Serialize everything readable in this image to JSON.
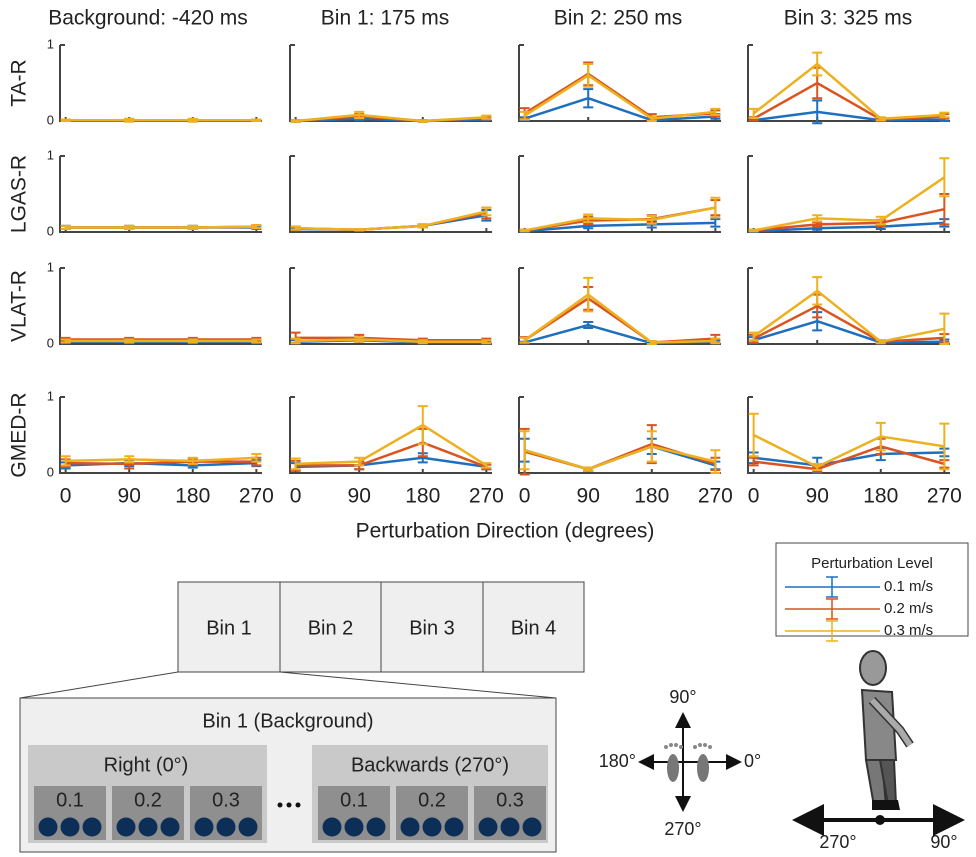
{
  "chart_data": [
    {
      "type": "line",
      "title": "Background: -420 ms",
      "ylabel": "TA-R",
      "x": [
        0,
        90,
        180,
        270
      ],
      "xlim": [
        -8,
        278
      ],
      "ylim": [
        0,
        1
      ],
      "yticks": [
        0,
        1
      ],
      "series": [
        {
          "values": [
            0.01,
            0.01,
            0.01,
            0.01
          ],
          "errors": [
            0.01,
            0.01,
            0.01,
            0.01
          ]
        },
        {
          "values": [
            0.01,
            0.01,
            0.01,
            0.01
          ],
          "errors": [
            0.01,
            0.01,
            0.01,
            0.01
          ]
        },
        {
          "values": [
            0.01,
            0.01,
            0.01,
            0.01
          ],
          "errors": [
            0.01,
            0.02,
            0.02,
            0.01
          ]
        }
      ]
    },
    {
      "type": "line",
      "title": "Bin 1: 175 ms",
      "x": [
        0,
        90,
        180,
        270
      ],
      "xlim": [
        -8,
        278
      ],
      "ylim": [
        0,
        1
      ],
      "series": [
        {
          "values": [
            0,
            0.03,
            0,
            0.02
          ],
          "errors": [
            0.01,
            0.02,
            0.01,
            0.01
          ]
        },
        {
          "values": [
            0,
            0.06,
            0,
            0.04
          ],
          "errors": [
            0.01,
            0.03,
            0.01,
            0.02
          ]
        },
        {
          "values": [
            0,
            0.08,
            0,
            0.05
          ],
          "errors": [
            0.01,
            0.04,
            0.01,
            0.02
          ]
        }
      ]
    },
    {
      "type": "line",
      "title": "Bin 2: 250 ms",
      "x": [
        0,
        90,
        180,
        270
      ],
      "xlim": [
        -8,
        278
      ],
      "ylim": [
        0,
        1
      ],
      "series": [
        {
          "values": [
            0.03,
            0.3,
            0.01,
            0.06
          ],
          "errors": [
            0.02,
            0.12,
            0.01,
            0.03
          ]
        },
        {
          "values": [
            0.1,
            0.62,
            0.05,
            0.1
          ],
          "errors": [
            0.07,
            0.15,
            0.04,
            0.04
          ]
        },
        {
          "values": [
            0.07,
            0.6,
            0.03,
            0.12
          ],
          "errors": [
            0.05,
            0.15,
            0.03,
            0.04
          ]
        }
      ]
    },
    {
      "type": "line",
      "title": "Bin 3: 325 ms",
      "x": [
        0,
        90,
        180,
        270
      ],
      "xlim": [
        -8,
        278
      ],
      "ylim": [
        0,
        1
      ],
      "series": [
        {
          "values": [
            0.01,
            0.12,
            0.01,
            0.02
          ],
          "errors": [
            0.01,
            0.15,
            0.01,
            0.02
          ]
        },
        {
          "values": [
            0.03,
            0.5,
            0.02,
            0.06
          ],
          "errors": [
            0.02,
            0.2,
            0.02,
            0.03
          ]
        },
        {
          "values": [
            0.1,
            0.75,
            0.03,
            0.08
          ],
          "errors": [
            0.06,
            0.15,
            0.02,
            0.03
          ]
        }
      ]
    },
    {
      "type": "line",
      "ylabel": "LGAS-R",
      "x": [
        0,
        90,
        180,
        270
      ],
      "xlim": [
        -8,
        278
      ],
      "ylim": [
        0,
        1
      ],
      "yticks": [
        0,
        1
      ],
      "series": [
        {
          "values": [
            0.06,
            0.06,
            0.06,
            0.06
          ],
          "errors": [
            0.02,
            0.02,
            0.02,
            0.02
          ]
        },
        {
          "values": [
            0.06,
            0.06,
            0.06,
            0.07
          ],
          "errors": [
            0.02,
            0.02,
            0.02,
            0.02
          ]
        },
        {
          "values": [
            0.06,
            0.06,
            0.06,
            0.07
          ],
          "errors": [
            0.02,
            0.02,
            0.02,
            0.02
          ]
        }
      ]
    },
    {
      "type": "line",
      "x": [
        0,
        90,
        180,
        270
      ],
      "xlim": [
        -8,
        278
      ],
      "ylim": [
        0,
        1
      ],
      "series": [
        {
          "values": [
            0.04,
            0.03,
            0.08,
            0.22
          ],
          "errors": [
            0.02,
            0.01,
            0.02,
            0.07
          ]
        },
        {
          "values": [
            0.05,
            0.03,
            0.08,
            0.25
          ],
          "errors": [
            0.02,
            0.01,
            0.02,
            0.07
          ]
        },
        {
          "values": [
            0.05,
            0.03,
            0.08,
            0.27
          ],
          "errors": [
            0.02,
            0.01,
            0.02,
            0.05
          ]
        }
      ]
    },
    {
      "type": "line",
      "x": [
        0,
        90,
        180,
        270
      ],
      "xlim": [
        -8,
        278
      ],
      "ylim": [
        0,
        1
      ],
      "series": [
        {
          "values": [
            0.01,
            0.08,
            0.1,
            0.12
          ],
          "errors": [
            0.01,
            0.03,
            0.04,
            0.05
          ]
        },
        {
          "values": [
            0.02,
            0.15,
            0.17,
            0.32
          ],
          "errors": [
            0.01,
            0.05,
            0.05,
            0.1
          ]
        },
        {
          "values": [
            0.02,
            0.18,
            0.16,
            0.32
          ],
          "errors": [
            0.01,
            0.05,
            0.05,
            0.13
          ]
        }
      ]
    },
    {
      "type": "line",
      "x": [
        0,
        90,
        180,
        270
      ],
      "xlim": [
        -8,
        278
      ],
      "ylim": [
        0,
        1
      ],
      "series": [
        {
          "values": [
            0.01,
            0.05,
            0.07,
            0.12
          ],
          "errors": [
            0.01,
            0.02,
            0.03,
            0.05
          ]
        },
        {
          "values": [
            0.02,
            0.1,
            0.12,
            0.3
          ],
          "errors": [
            0.01,
            0.03,
            0.04,
            0.2
          ]
        },
        {
          "values": [
            0.02,
            0.18,
            0.15,
            0.72
          ],
          "errors": [
            0.01,
            0.04,
            0.05,
            0.25
          ]
        }
      ]
    },
    {
      "type": "line",
      "ylabel": "VLAT-R",
      "x": [
        0,
        90,
        180,
        270
      ],
      "xlim": [
        -8,
        278
      ],
      "ylim": [
        0,
        1
      ],
      "yticks": [
        0,
        1
      ],
      "series": [
        {
          "values": [
            0.03,
            0.03,
            0.03,
            0.03
          ],
          "errors": [
            0.02,
            0.02,
            0.02,
            0.02
          ]
        },
        {
          "values": [
            0.06,
            0.06,
            0.06,
            0.06
          ],
          "errors": [
            0.02,
            0.02,
            0.02,
            0.02
          ]
        },
        {
          "values": [
            0.04,
            0.04,
            0.04,
            0.04
          ],
          "errors": [
            0.02,
            0.02,
            0.02,
            0.02
          ]
        }
      ]
    },
    {
      "type": "line",
      "x": [
        0,
        90,
        180,
        270
      ],
      "xlim": [
        -8,
        278
      ],
      "ylim": [
        0,
        1
      ],
      "series": [
        {
          "values": [
            0.03,
            0.05,
            0.02,
            0.02
          ],
          "errors": [
            0.02,
            0.02,
            0.01,
            0.01
          ]
        },
        {
          "values": [
            0.08,
            0.08,
            0.05,
            0.05
          ],
          "errors": [
            0.07,
            0.04,
            0.02,
            0.02
          ]
        },
        {
          "values": [
            0.04,
            0.06,
            0.03,
            0.03
          ],
          "errors": [
            0.03,
            0.03,
            0.02,
            0.02
          ]
        }
      ]
    },
    {
      "type": "line",
      "x": [
        0,
        90,
        180,
        270
      ],
      "xlim": [
        -8,
        278
      ],
      "ylim": [
        0,
        1
      ],
      "series": [
        {
          "values": [
            0.02,
            0.25,
            0.01,
            0.03
          ],
          "errors": [
            0.01,
            0.04,
            0.01,
            0.02
          ]
        },
        {
          "values": [
            0.05,
            0.6,
            0.02,
            0.07
          ],
          "errors": [
            0.04,
            0.15,
            0.02,
            0.05
          ]
        },
        {
          "values": [
            0.05,
            0.65,
            0.02,
            0.04
          ],
          "errors": [
            0.03,
            0.22,
            0.02,
            0.03
          ]
        }
      ]
    },
    {
      "type": "line",
      "x": [
        0,
        90,
        180,
        270
      ],
      "xlim": [
        -8,
        278
      ],
      "ylim": [
        0,
        1
      ],
      "series": [
        {
          "values": [
            0.05,
            0.3,
            0.02,
            0.03
          ],
          "errors": [
            0.04,
            0.12,
            0.01,
            0.03
          ]
        },
        {
          "values": [
            0.07,
            0.5,
            0.03,
            0.08
          ],
          "errors": [
            0.05,
            0.15,
            0.02,
            0.05
          ]
        },
        {
          "values": [
            0.1,
            0.7,
            0.03,
            0.2
          ],
          "errors": [
            0.05,
            0.18,
            0.02,
            0.2
          ]
        }
      ]
    },
    {
      "type": "line",
      "ylabel": "GMED-R",
      "x": [
        0,
        90,
        180,
        270
      ],
      "xlim": [
        -8,
        278
      ],
      "ylim": [
        0,
        1
      ],
      "yticks": [
        0,
        1
      ],
      "xticks": [
        0,
        90,
        180,
        270
      ],
      "series": [
        {
          "values": [
            0.1,
            0.13,
            0.1,
            0.13
          ],
          "errors": [
            0.04,
            0.04,
            0.03,
            0.04
          ]
        },
        {
          "values": [
            0.13,
            0.12,
            0.15,
            0.15
          ],
          "errors": [
            0.05,
            0.06,
            0.04,
            0.05
          ]
        },
        {
          "values": [
            0.16,
            0.18,
            0.16,
            0.2
          ],
          "errors": [
            0.06,
            0.04,
            0.04,
            0.05
          ]
        }
      ]
    },
    {
      "type": "line",
      "x": [
        0,
        90,
        180,
        270
      ],
      "xlim": [
        -8,
        278
      ],
      "ylim": [
        0,
        1
      ],
      "xticks": [
        0,
        90,
        180,
        270
      ],
      "series": [
        {
          "values": [
            0.08,
            0.1,
            0.2,
            0.08
          ],
          "errors": [
            0.05,
            0.05,
            0.06,
            0.03
          ]
        },
        {
          "values": [
            0.1,
            0.1,
            0.4,
            0.08
          ],
          "errors": [
            0.06,
            0.05,
            0.18,
            0.03
          ]
        },
        {
          "values": [
            0.12,
            0.15,
            0.63,
            0.1
          ],
          "errors": [
            0.07,
            0.05,
            0.25,
            0.03
          ]
        }
      ]
    },
    {
      "type": "line",
      "x": [
        0,
        90,
        180,
        270
      ],
      "xlim": [
        -8,
        278
      ],
      "ylim": [
        0,
        1
      ],
      "xticks": [
        0,
        90,
        180,
        270
      ],
      "series": [
        {
          "values": [
            0.3,
            0.05,
            0.35,
            0.1
          ],
          "errors": [
            0.15,
            0.02,
            0.1,
            0.05
          ]
        },
        {
          "values": [
            0.28,
            0.05,
            0.38,
            0.12
          ],
          "errors": [
            0.3,
            0.02,
            0.25,
            0.08
          ]
        },
        {
          "values": [
            0.3,
            0.05,
            0.35,
            0.15
          ],
          "errors": [
            0.25,
            0.02,
            0.2,
            0.15
          ]
        }
      ]
    },
    {
      "type": "line",
      "x": [
        0,
        90,
        180,
        270
      ],
      "xlim": [
        -8,
        278
      ],
      "ylim": [
        0,
        1
      ],
      "xticks": [
        0,
        90,
        180,
        270
      ],
      "series": [
        {
          "values": [
            0.2,
            0.1,
            0.25,
            0.27
          ],
          "errors": [
            0.07,
            0.1,
            0.08,
            0.05
          ]
        },
        {
          "values": [
            0.15,
            0.05,
            0.35,
            0.12
          ],
          "errors": [
            0.05,
            0.03,
            0.1,
            0.05
          ]
        },
        {
          "values": [
            0.5,
            0.08,
            0.48,
            0.35
          ],
          "errors": [
            0.28,
            0.04,
            0.18,
            0.3
          ]
        }
      ]
    }
  ],
  "figure": {
    "xlabel": "Perturbation Direction (degrees)"
  },
  "legend": {
    "title": "Perturbation Level",
    "series": [
      {
        "name": "0.1 m/s",
        "color": "#1f6fbf"
      },
      {
        "name": "0.2 m/s",
        "color": "#d9541e"
      },
      {
        "name": "0.3 m/s",
        "color": "#edb120"
      }
    ]
  },
  "diagram": {
    "bins": [
      "Bin 1",
      "Bin 2",
      "Bin 3",
      "Bin 4"
    ],
    "detail": {
      "title": "Bin 1 (Background)",
      "groups": [
        {
          "label": "Right (0°)",
          "levels": [
            "0.1",
            "0.2",
            "0.3"
          ]
        },
        {
          "label": "Backwards (270°)",
          "levels": [
            "0.1",
            "0.2",
            "0.3"
          ]
        }
      ]
    },
    "compass": {
      "up": "90°",
      "left": "180°",
      "right": "0°",
      "down": "270°"
    },
    "person": {
      "left": "270°",
      "right": "90°"
    }
  }
}
